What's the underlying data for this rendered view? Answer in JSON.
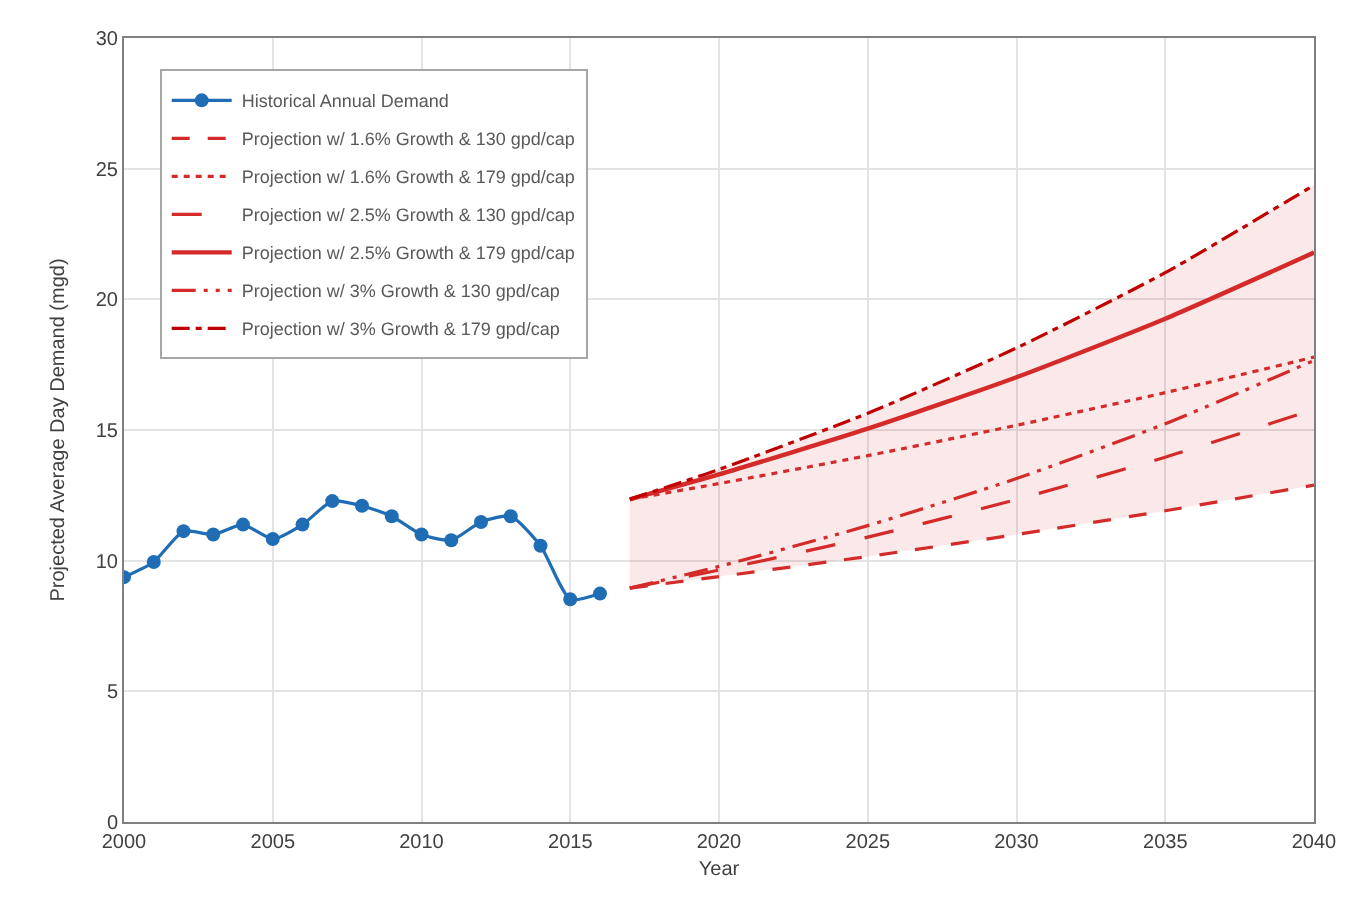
{
  "chart_data": {
    "type": "line",
    "xlabel": "Year",
    "ylabel": "Projected Average Day Demand (mgd)",
    "xlim": [
      2000,
      2040
    ],
    "xticks": [
      2000,
      2005,
      2010,
      2015,
      2020,
      2025,
      2030,
      2035,
      2040
    ],
    "ylim": [
      0,
      30
    ],
    "yticks": [
      0,
      5,
      10,
      15,
      20,
      25,
      30
    ],
    "grid": true,
    "legend": "top left",
    "series": [
      {
        "name": "Historical Annual Demand",
        "color": "#1f6db5",
        "marker": "circle",
        "line_style": "solid",
        "x": [
          2000,
          2001,
          2002,
          2003,
          2004,
          2005,
          2006,
          2007,
          2008,
          2009,
          2010,
          2011,
          2012,
          2013,
          2014,
          2015,
          2016
        ],
        "values": [
          9.37,
          9.95,
          11.13,
          11.0,
          11.38,
          10.83,
          11.38,
          12.28,
          12.1,
          11.7,
          11.0,
          10.78,
          11.48,
          11.7,
          10.57,
          8.52,
          8.74
        ]
      },
      {
        "name": "Projection w/ 1.6% Growth & 130 gpd/cap",
        "color": "#d42a2a",
        "marker": "none",
        "line_style": "dashed",
        "x": [
          2017,
          2020,
          2025,
          2030,
          2035,
          2040
        ],
        "values": [
          8.95,
          9.39,
          10.16,
          11.0,
          11.91,
          12.89
        ]
      },
      {
        "name": "Projection w/ 1.6% Growth & 179 gpd/cap",
        "color": "#d42a2a",
        "marker": "none",
        "line_style": "dotted",
        "x": [
          2017,
          2020,
          2025,
          2030,
          2035,
          2040
        ],
        "values": [
          12.35,
          12.95,
          14.02,
          15.18,
          16.43,
          17.79
        ]
      },
      {
        "name": "Projection w/ 2.5% Growth & 130 gpd/cap",
        "color": "#d42a2a",
        "marker": "none",
        "line_style": "long-dashed",
        "x": [
          2017,
          2020,
          2025,
          2030,
          2035,
          2040
        ],
        "values": [
          8.95,
          9.64,
          10.9,
          12.34,
          13.96,
          15.79
        ]
      },
      {
        "name": "Projection w/ 2.5% Growth & 179 gpd/cap",
        "color": "#d42a2a",
        "marker": "none",
        "line_style": "solid",
        "x": [
          2017,
          2020,
          2025,
          2030,
          2035,
          2040
        ],
        "values": [
          12.35,
          13.3,
          15.05,
          17.02,
          19.26,
          21.79
        ],
        "lower": [
          8.95,
          9.39,
          10.16,
          11.0,
          11.91,
          12.89
        ],
        "upper": [
          12.35,
          13.49,
          15.64,
          18.14,
          21.02,
          24.37
        ]
      },
      {
        "name": "Projection w/ 3% Growth & 130 gpd/cap",
        "color": "#d42a2a",
        "marker": "none",
        "line_style": "long-dash-dot-dot",
        "x": [
          2017,
          2020,
          2025,
          2030,
          2035,
          2040
        ],
        "values": [
          8.95,
          9.78,
          11.34,
          13.14,
          15.24,
          17.66
        ]
      },
      {
        "name": "Projection w/ 3% Growth & 179 gpd/cap",
        "color": "#c00000",
        "marker": "none",
        "line_style": "dash-dot",
        "x": [
          2017,
          2020,
          2025,
          2030,
          2035,
          2040
        ],
        "values": [
          12.35,
          13.49,
          15.64,
          18.14,
          21.02,
          24.37
        ]
      }
    ]
  }
}
